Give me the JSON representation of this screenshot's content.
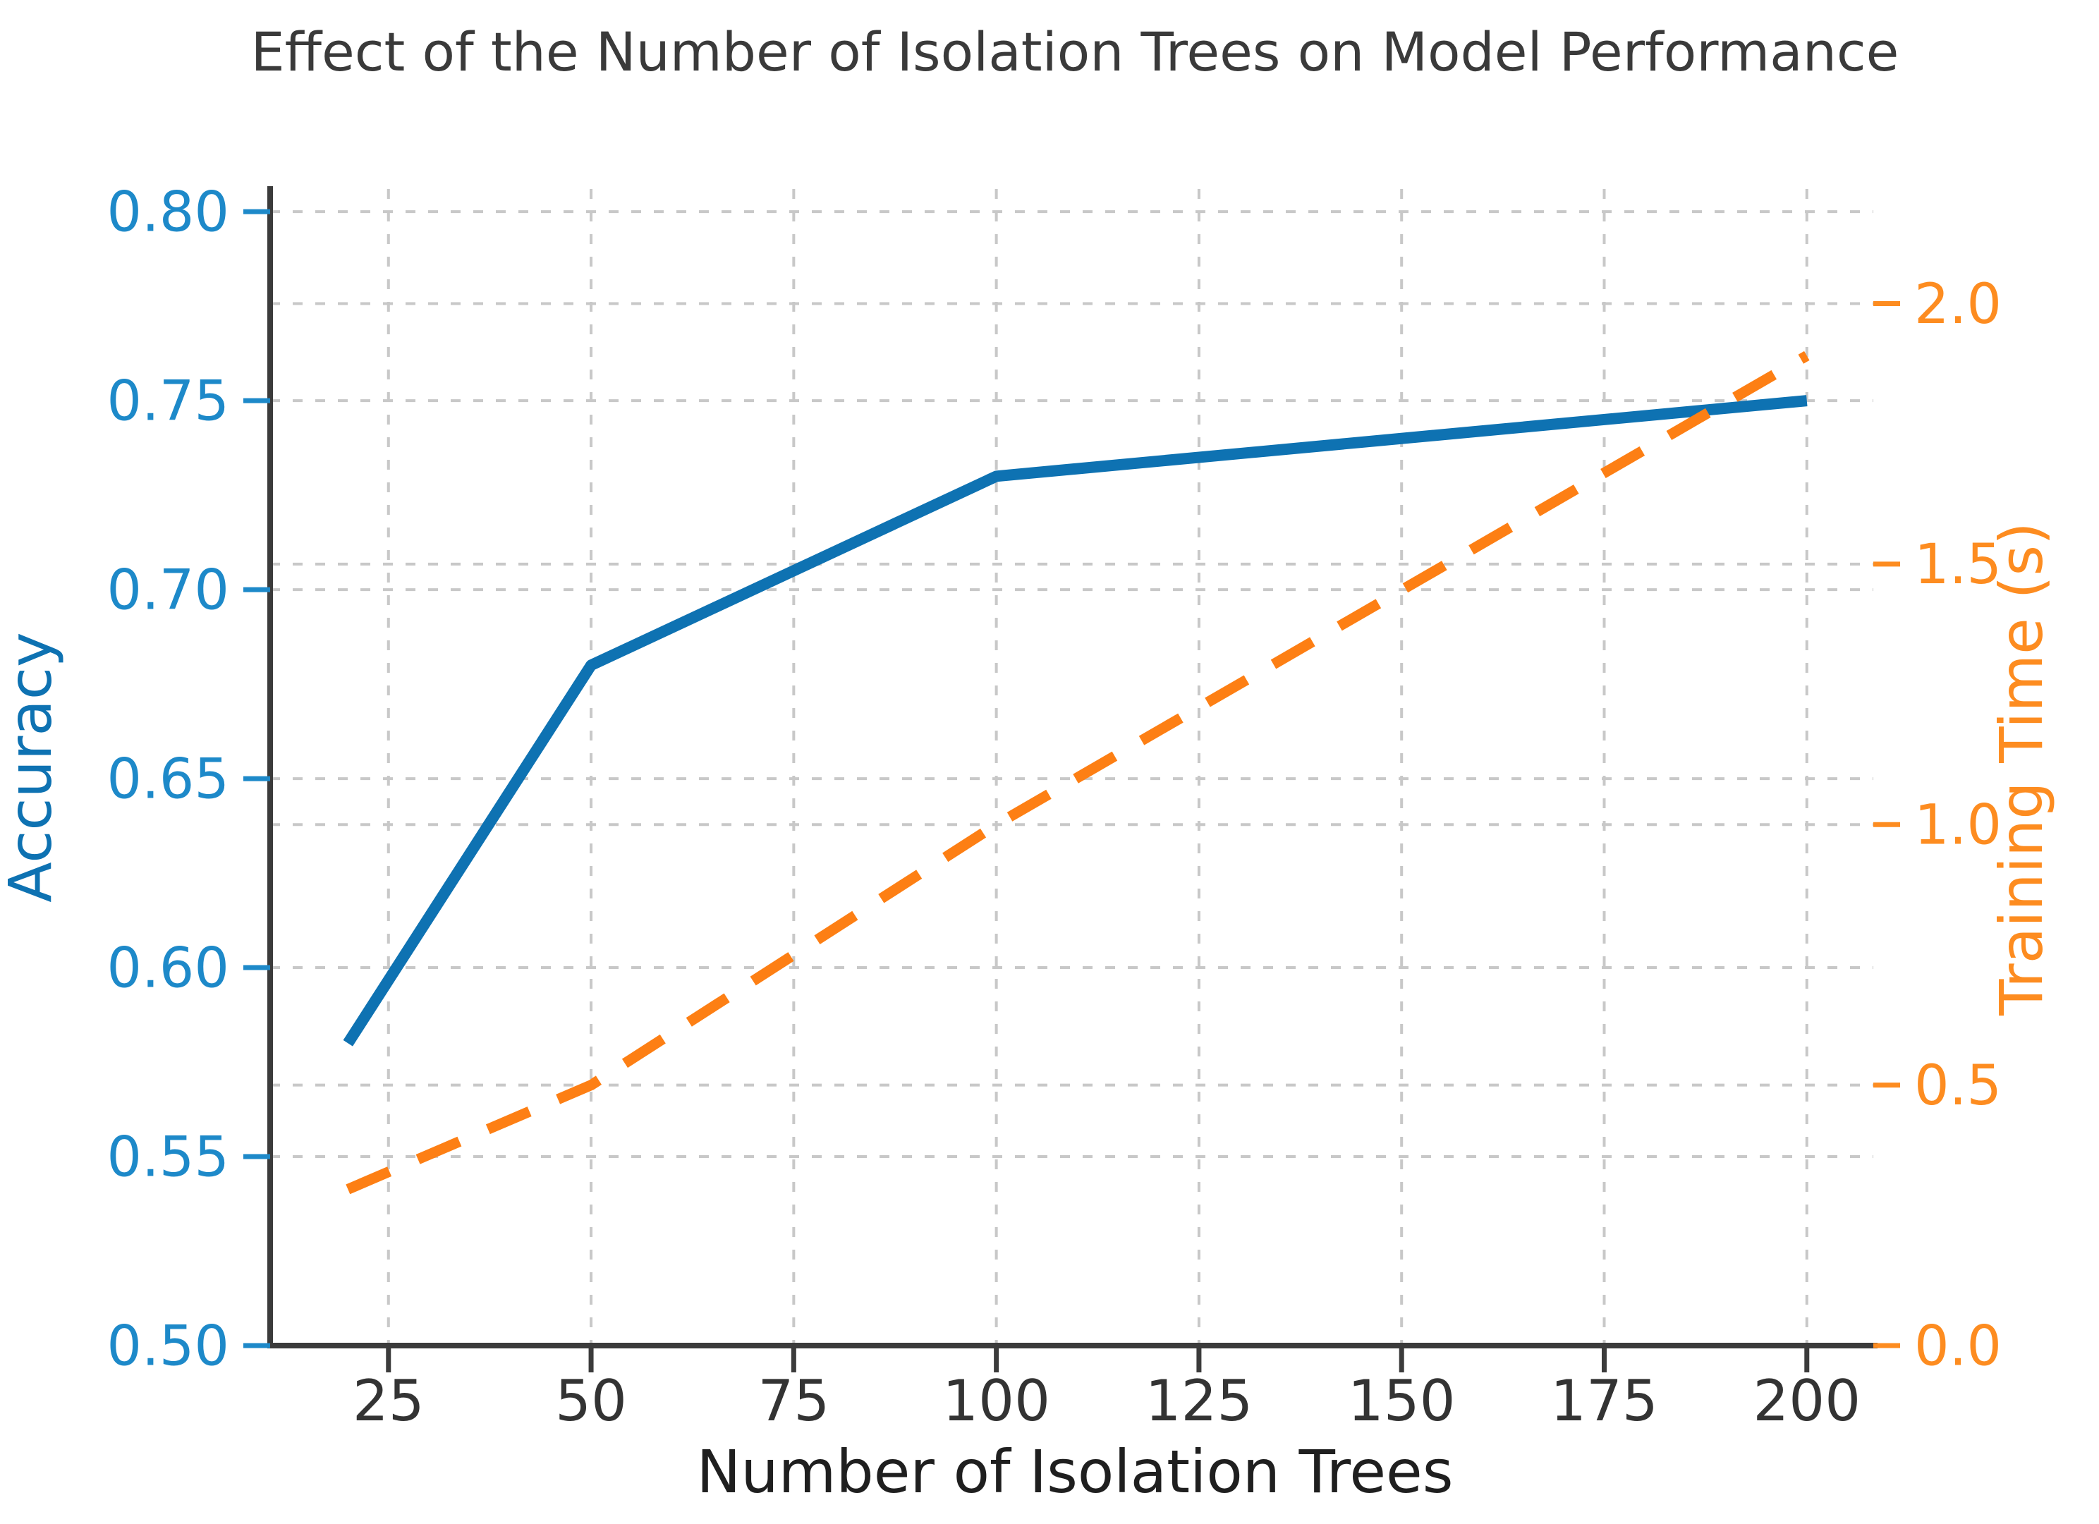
{
  "figure": {
    "background": "#ffffff"
  },
  "chart_data": {
    "type": "line",
    "title": "Effect of the Number of Isolation Trees on Model Performance",
    "xlabel": "Number of Isolation Trees",
    "ylabel_left": "Accuracy",
    "ylabel_right": "Training Time (s)",
    "x": [
      20,
      50,
      100,
      200
    ],
    "series": [
      {
        "name": "Accuracy",
        "axis": "left",
        "values": [
          0.58,
          0.68,
          0.73,
          0.75
        ],
        "color": "#0e72b2",
        "line_style": "solid"
      },
      {
        "name": "Training Time (s)",
        "axis": "right",
        "values": [
          0.3,
          0.5,
          1.0,
          1.9
        ],
        "color": "#fd7f14",
        "line_style": "dashed"
      }
    ],
    "x_axis": {
      "ticks": [
        25,
        50,
        75,
        100,
        125,
        150,
        175,
        200
      ],
      "lim": [
        10.4,
        208.2
      ],
      "tick_color": "#333333"
    },
    "left_axis": {
      "ticks": [
        "0.50",
        "0.55",
        "0.60",
        "0.65",
        "0.70",
        "0.75",
        "0.80"
      ],
      "lim": [
        0.5,
        0.806
      ],
      "tick_color": "#1d89c9"
    },
    "right_axis": {
      "ticks": [
        "0.0",
        "0.5",
        "1.0",
        "1.5",
        "2.0"
      ],
      "lim": [
        0.0,
        2.22
      ],
      "tick_color": "#fd8c20"
    },
    "grid": true,
    "legend": "none",
    "styles": {
      "title_color": "#3a3a3a",
      "xlabel_color": "#1f1f1f",
      "grid_color": "#c8c8c8",
      "spine_color": "#3b3b3b",
      "background": "#ffffff"
    }
  }
}
